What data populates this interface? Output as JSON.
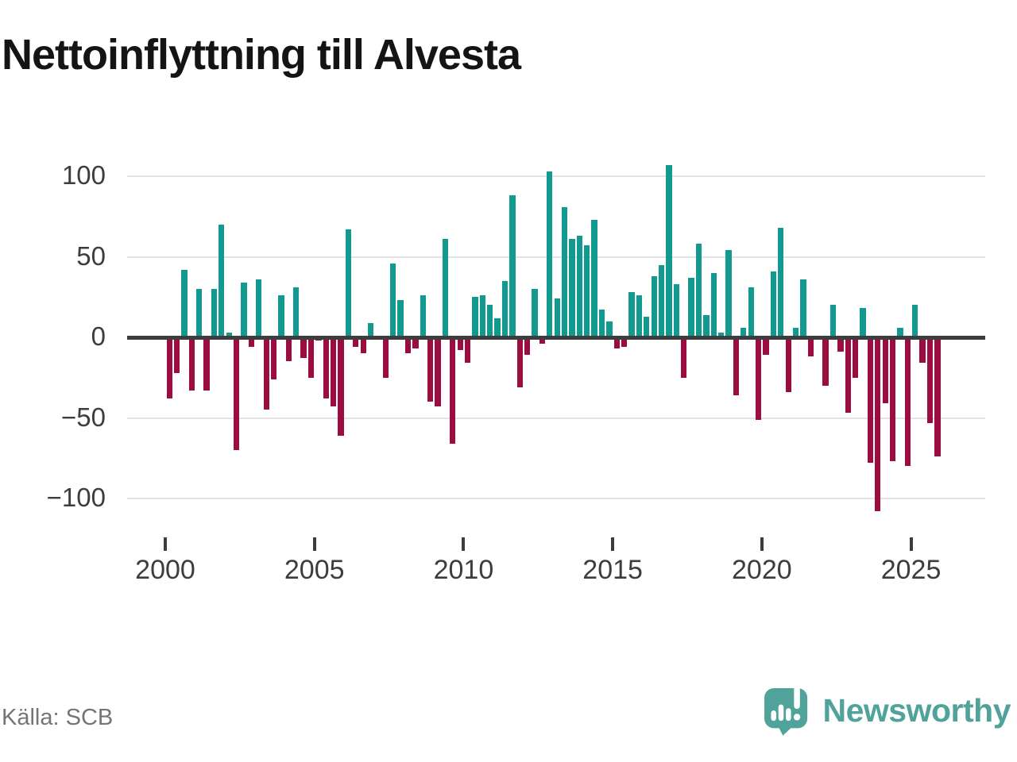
{
  "title": "Nettoinflyttning till Alvesta",
  "source": "Källa: SCB",
  "brand": {
    "name": "Newsworthy"
  },
  "colors": {
    "positive_bar": "#129a90",
    "negative_bar": "#9b0d41",
    "gridline": "#e3e3e3",
    "zero_line": "#3d3d3d",
    "axis_text": "#3d3d3d",
    "title_text": "#141414",
    "source_text": "#757575",
    "brand_teal": "#4fa39b"
  },
  "chart_data": {
    "type": "bar",
    "title": "Nettoinflyttning till Alvesta",
    "x_unit": "quarter",
    "start_year": 2000,
    "start_quarter": 1,
    "series": [
      {
        "name": "Nettoinflyttning",
        "values": [
          -38,
          -22,
          42,
          -33,
          30,
          -33,
          30,
          70,
          3,
          -70,
          34,
          -6,
          36,
          -45,
          -26,
          26,
          -15,
          31,
          -13,
          -25,
          -2,
          -38,
          -43,
          -61,
          67,
          -6,
          -10,
          9,
          0,
          -25,
          46,
          23,
          -10,
          -7,
          26,
          -40,
          -43,
          61,
          -66,
          -8,
          -16,
          25,
          26,
          20,
          12,
          35,
          88,
          -31,
          -11,
          30,
          -4,
          103,
          24,
          81,
          61,
          63,
          57,
          73,
          17,
          10,
          -7,
          -6,
          28,
          26,
          13,
          38,
          45,
          107,
          33,
          -25,
          37,
          58,
          14,
          40,
          3,
          54,
          -36,
          6,
          31,
          -51,
          -11,
          41,
          68,
          -34,
          6,
          36,
          -12,
          0,
          -30,
          20,
          -9,
          -47,
          -25,
          18,
          -78,
          -108,
          -41,
          -77,
          6,
          -80,
          20,
          -16,
          -53,
          -74
        ]
      }
    ],
    "x_ticks": [
      2000,
      2005,
      2010,
      2015,
      2020,
      2025
    ],
    "y_ticks": [
      100,
      50,
      0,
      -50,
      -100
    ],
    "ylim": [
      -115,
      115
    ],
    "grid": true,
    "legend": "none"
  }
}
